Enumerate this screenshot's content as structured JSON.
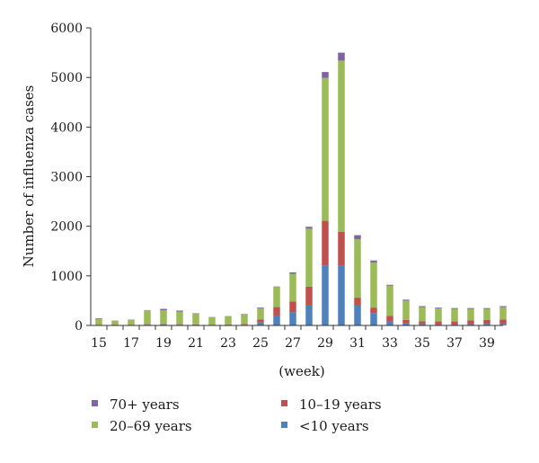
{
  "chart_data": {
    "type": "bar",
    "stacked": true,
    "title": "",
    "xlabel": "(week)",
    "ylabel": "Number of influenza cases",
    "ylim": [
      0,
      6000
    ],
    "yticks": [
      0,
      1000,
      2000,
      3000,
      4000,
      5000,
      6000
    ],
    "grid": false,
    "legend_position": "bottom",
    "categories": [
      15,
      16,
      17,
      18,
      19,
      20,
      21,
      22,
      23,
      24,
      25,
      26,
      27,
      28,
      29,
      30,
      31,
      32,
      33,
      34,
      35,
      36,
      37,
      38,
      39,
      40
    ],
    "xtick_labels": [
      "15",
      "17",
      "19",
      "21",
      "23",
      "25",
      "27",
      "29",
      "31",
      "33",
      "35",
      "37",
      "39"
    ],
    "series": [
      {
        "name": "<10 years",
        "color": "#4f81bd",
        "values": [
          10,
          10,
          10,
          15,
          20,
          15,
          10,
          10,
          10,
          15,
          60,
          200,
          270,
          400,
          1210,
          1200,
          400,
          250,
          80,
          40,
          25,
          20,
          20,
          25,
          30,
          30
        ]
      },
      {
        "name": "10–19 years",
        "color": "#c0504d",
        "values": [
          5,
          5,
          5,
          10,
          10,
          10,
          10,
          5,
          10,
          15,
          60,
          170,
          210,
          380,
          900,
          690,
          160,
          110,
          110,
          70,
          60,
          60,
          60,
          80,
          80,
          90
        ]
      },
      {
        "name": "20–69 years",
        "color": "#9bbb59",
        "values": [
          120,
          80,
          100,
          280,
          275,
          255,
          215,
          150,
          165,
          190,
          225,
          405,
          560,
          1170,
          2880,
          3450,
          1180,
          910,
          610,
          390,
          285,
          265,
          255,
          225,
          225,
          250
        ]
      },
      {
        "name": "70+ years",
        "color": "#8064a2",
        "values": [
          10,
          5,
          5,
          5,
          30,
          20,
          10,
          5,
          5,
          10,
          15,
          10,
          30,
          40,
          120,
          160,
          80,
          40,
          20,
          20,
          20,
          15,
          15,
          20,
          15,
          20
        ]
      }
    ],
    "legend": [
      {
        "label": "70+ years",
        "color": "#8064a2"
      },
      {
        "label": "10–19 years",
        "color": "#c0504d"
      },
      {
        "label": "20–69 years",
        "color": "#9bbb59"
      },
      {
        "label": "<10 years",
        "color": "#4f81bd"
      }
    ]
  }
}
